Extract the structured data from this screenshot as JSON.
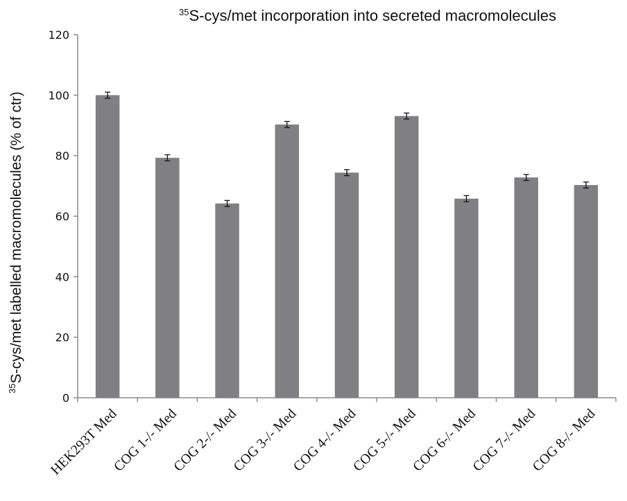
{
  "chart_data": {
    "type": "bar",
    "title_sup": "35",
    "title_rest": "S-cys/met incorporation into secreted macromolecules",
    "ylabel_sup": "35",
    "ylabel_rest": "S-cys/met labelled macromolecules (% of ctr)",
    "xlabel": "",
    "categories": [
      "HEK293T Med",
      "COG 1-/- Med",
      "COG 2-/- Med",
      "COG 3-/- Med",
      "COG 4-/- Med",
      "COG 5-/- Med",
      "COG 6-/- Med",
      "COG 7-/- Med",
      "COG 8-/- Med"
    ],
    "values": [
      100,
      79.3,
      64.2,
      90.3,
      74.4,
      93.1,
      65.8,
      72.8,
      70.3
    ],
    "errors": [
      1.0,
      1.0,
      1.0,
      1.0,
      1.0,
      1.0,
      1.0,
      1.0,
      1.0
    ],
    "ylim": [
      0,
      120
    ],
    "yticks": [
      0,
      20,
      40,
      60,
      80,
      100,
      120
    ],
    "grid": false,
    "legend": "none",
    "bar_color": "#808083",
    "axis_color": "#8c8c8c"
  }
}
